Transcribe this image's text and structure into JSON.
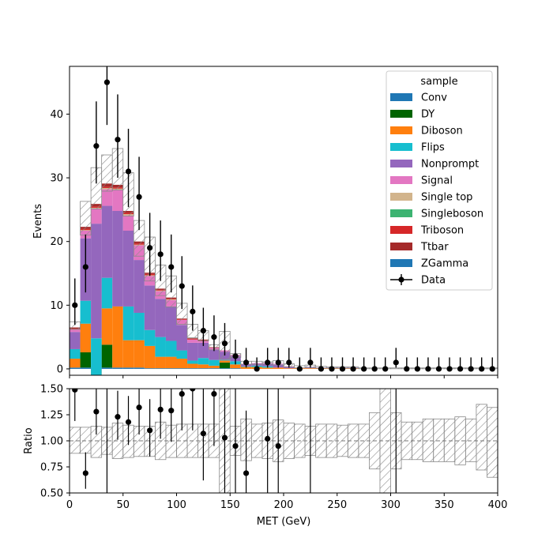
{
  "chart_data": [
    {
      "type": "stacked-histogram",
      "xlabel": "",
      "ylabel": "Events",
      "xlim": [
        0,
        400
      ],
      "ylim": [
        -1,
        47.5
      ],
      "yticks": [
        0,
        10,
        20,
        30,
        40
      ],
      "bins": [
        0,
        10,
        20,
        30,
        40,
        50,
        60,
        70,
        80,
        90,
        100,
        110,
        120,
        130,
        140,
        150,
        160,
        170,
        180,
        190,
        200,
        210,
        220,
        230,
        240,
        250,
        260,
        270,
        280,
        290,
        300,
        310,
        320,
        330,
        340,
        350,
        360,
        370,
        380,
        390,
        400
      ],
      "legend_title": "sample",
      "legend_position": "top-right",
      "series": [
        {
          "name": "Conv",
          "color": "#1f77b4",
          "values": [
            0.2,
            0.2,
            0.2,
            0.2,
            0.2,
            0.2,
            0.2,
            0.1,
            0.1,
            0.1,
            0.1,
            0.1,
            0.1,
            0.1,
            0.1,
            0.1,
            0,
            0,
            0,
            0,
            0,
            0,
            0,
            0,
            0,
            0,
            0,
            0,
            0,
            0,
            0,
            0,
            0,
            0,
            0,
            0,
            0,
            0,
            0,
            0
          ]
        },
        {
          "name": "DY",
          "color": "#006400",
          "values": [
            0,
            2.4,
            0,
            3.6,
            0,
            0,
            0,
            0,
            0,
            0,
            0,
            0,
            0,
            0,
            0.9,
            0,
            0,
            0,
            0,
            0,
            0,
            0,
            0,
            0,
            0,
            0,
            0,
            0,
            0,
            0,
            0,
            0,
            0,
            0,
            0,
            0,
            0,
            0,
            0,
            0
          ]
        },
        {
          "name": "Diboson",
          "color": "#ff7f0e",
          "values": [
            1.4,
            4.5,
            -1.2,
            5.7,
            9.6,
            4.3,
            4.3,
            3.5,
            1.8,
            1.8,
            1.5,
            0.7,
            0.6,
            0.4,
            0.3,
            0.6,
            0.3,
            0.3,
            0.2,
            0.2,
            0.1,
            0.1,
            0.1,
            0.1,
            0.1,
            0.1,
            0.1,
            0,
            0,
            0,
            0,
            0,
            0,
            0,
            0,
            0,
            0,
            0,
            0,
            0
          ]
        },
        {
          "name": "Flips",
          "color": "#17becf",
          "values": [
            1.5,
            3.6,
            5.8,
            4.8,
            0,
            5.3,
            4.3,
            2.5,
            3.1,
            2.5,
            1.3,
            0.5,
            1.0,
            0.9,
            0.1,
            0.5,
            0.1,
            0.2,
            0.2,
            0,
            0,
            0,
            0,
            0,
            0,
            0,
            0,
            0,
            0,
            0,
            0,
            0,
            0,
            0,
            0,
            0,
            0,
            0,
            0,
            0
          ]
        },
        {
          "name": "Nonprompt",
          "color": "#9467bd",
          "values": [
            2.7,
            9.8,
            18.0,
            11.3,
            15.0,
            11.9,
            8.3,
            7.0,
            6.0,
            5.4,
            4.0,
            2.8,
            2.4,
            1.6,
            1.3,
            0.8,
            0.3,
            0.3,
            0.4,
            0.5,
            0.2,
            0.1,
            0.2,
            0.1,
            0.1,
            0.1,
            0.1,
            0,
            0,
            0,
            0,
            0,
            0,
            0,
            0,
            0,
            0,
            0,
            0,
            0
          ]
        },
        {
          "name": "Signal",
          "color": "#e377c2",
          "values": [
            0.4,
            1.2,
            2.4,
            2.6,
            3.3,
            2.4,
            2.3,
            1.5,
            1.2,
            1.0,
            0.8,
            0.5,
            0.3,
            0.3,
            0.2,
            0.2,
            0.1,
            0.1,
            0.1,
            0.1,
            0.1,
            0,
            0,
            0,
            0,
            0,
            0,
            0,
            0,
            0,
            0,
            0,
            0,
            0,
            0,
            0,
            0,
            0,
            0,
            0
          ]
        },
        {
          "name": "Single top",
          "color": "#d2b48c",
          "values": [
            0,
            0.1,
            0.1,
            0.2,
            0.2,
            0.2,
            0.1,
            0.1,
            0.1,
            0.1,
            0,
            0,
            0,
            0,
            0,
            0,
            0,
            0,
            0,
            0,
            0,
            0,
            0,
            0,
            0,
            0,
            0,
            0,
            0,
            0,
            0,
            0,
            0,
            0,
            0,
            0,
            0,
            0,
            0,
            0
          ]
        },
        {
          "name": "Singleboson",
          "color": "#3cb371",
          "values": [
            0,
            0,
            0,
            0,
            0,
            0,
            0,
            0,
            0,
            0,
            0,
            0,
            0,
            0,
            0,
            0,
            0,
            0,
            0,
            0,
            0,
            0,
            0,
            0,
            0,
            0,
            0,
            0,
            0,
            0,
            0,
            0,
            0,
            0,
            0,
            0,
            0,
            0,
            0,
            0
          ]
        },
        {
          "name": "Triboson",
          "color": "#d62728",
          "values": [
            0.1,
            0.2,
            0.2,
            0.2,
            0.2,
            0.2,
            0.2,
            0.2,
            0.1,
            0.1,
            0.1,
            0.1,
            0.1,
            0,
            0,
            0,
            0,
            0,
            0,
            0,
            0,
            0,
            0,
            0,
            0,
            0,
            0,
            0,
            0,
            0,
            0,
            0,
            0,
            0,
            0,
            0,
            0,
            0,
            0,
            0
          ]
        },
        {
          "name": "Ttbar",
          "color": "#a52a2a",
          "values": [
            0.2,
            0.3,
            0.4,
            0.5,
            0.4,
            0.3,
            0.3,
            0.2,
            0.2,
            0.2,
            0.1,
            0.1,
            0.1,
            0.1,
            0,
            0,
            0,
            0,
            0,
            0,
            0,
            0,
            0,
            0,
            0,
            0,
            0,
            0,
            0,
            0,
            0,
            0,
            0,
            0,
            0,
            0,
            0,
            0,
            0,
            0
          ]
        },
        {
          "name": "ZGamma",
          "color": "#1f77b4",
          "values": [
            0,
            0,
            0,
            0,
            0,
            0,
            0,
            0,
            0,
            0,
            0,
            0,
            0,
            0,
            0,
            0,
            0,
            0,
            0,
            0,
            0,
            0,
            0,
            0,
            0,
            0,
            0,
            0,
            0,
            0,
            0,
            0,
            0,
            0,
            0,
            0,
            0,
            0,
            0,
            0
          ]
        }
      ],
      "mc_uncertainty_band": {
        "low": [
          6.2,
          21.0,
          25.1,
          27.9,
          28.1,
          24.0,
          17.7,
          13.8,
          11.5,
          9.7,
          7.0,
          4.9,
          4.4,
          3.0,
          1.5,
          1.8,
          0.7,
          0.7,
          0.7,
          0.6,
          0.3,
          0.15,
          0.2,
          0.1,
          0.1,
          0.1,
          0.1,
          0.02,
          0.02,
          0.02,
          0.02,
          0.02,
          0.02,
          0.02,
          0.02,
          0.02,
          0.02,
          0.02,
          0.02,
          0.02
        ],
        "high": [
          7.4,
          26.3,
          31.6,
          33.6,
          34.6,
          30.8,
          23.3,
          20.7,
          16.3,
          14.6,
          10.3,
          7.0,
          6.0,
          3.8,
          5.9,
          2.4,
          1.2,
          1.2,
          1.1,
          1.3,
          0.8,
          0.5,
          0.6,
          0.4,
          0.3,
          0.3,
          0.3,
          0.15,
          0.15,
          0.15,
          0.15,
          0.15,
          0.15,
          0.15,
          0.15,
          0.15,
          0.15,
          0.15,
          0.15,
          0.15
        ]
      },
      "data_series": {
        "name": "Data",
        "x": [
          5,
          15,
          25,
          35,
          45,
          55,
          65,
          75,
          85,
          95,
          105,
          115,
          125,
          135,
          145,
          155,
          165,
          175,
          185,
          195,
          205,
          215,
          225,
          235,
          245,
          255,
          265,
          275,
          285,
          295,
          305,
          315,
          325,
          335,
          345,
          355,
          365,
          375,
          385,
          395
        ],
        "y": [
          10,
          16,
          35,
          45,
          36,
          31,
          27,
          19,
          18,
          16,
          13,
          9,
          6,
          5,
          4,
          2,
          1,
          0,
          1,
          1,
          1,
          0,
          1,
          0,
          0,
          0,
          0,
          0,
          0,
          0,
          1,
          0,
          0,
          0,
          0,
          0,
          0,
          0,
          0,
          0
        ],
        "yerr_low": [
          3.1,
          4.0,
          5.9,
          6.7,
          6.0,
          5.6,
          5.2,
          4.4,
          4.2,
          4.0,
          3.6,
          3.0,
          2.4,
          2.2,
          1.9,
          1.3,
          0.8,
          0,
          0.8,
          0.8,
          0.8,
          0,
          0.8,
          0,
          0,
          0,
          0,
          0,
          0,
          0,
          0.8,
          0,
          0,
          0,
          0,
          0,
          0,
          0,
          0,
          0
        ],
        "yerr_high": [
          4.2,
          5.1,
          7.0,
          7.8,
          7.1,
          6.7,
          6.3,
          5.5,
          5.3,
          5.1,
          4.7,
          4.1,
          3.6,
          3.4,
          3.2,
          2.6,
          2.3,
          1.8,
          2.3,
          2.3,
          2.3,
          1.8,
          2.3,
          1.8,
          1.8,
          1.8,
          1.8,
          1.8,
          1.8,
          1.8,
          2.3,
          1.8,
          1.8,
          1.8,
          1.8,
          1.8,
          1.8,
          1.8,
          1.8,
          1.8
        ]
      }
    },
    {
      "type": "ratio",
      "xlabel": "MET (GeV)",
      "ylabel": "Ratio",
      "xlim": [
        0,
        400
      ],
      "ylim": [
        0.5,
        1.5
      ],
      "yticks": [
        0.5,
        0.75,
        1.0,
        1.25,
        1.5
      ],
      "ytick_labels": [
        "0.50",
        "0.75",
        "1.00",
        "1.25",
        "1.50"
      ],
      "xticks": [
        0,
        50,
        100,
        150,
        200,
        250,
        300,
        350,
        400
      ],
      "reference_line": 1.0,
      "band": {
        "low": [
          0.88,
          0.88,
          0.84,
          0.87,
          0.83,
          0.84,
          0.85,
          0.85,
          0.82,
          0.84,
          0.84,
          0.84,
          0.84,
          0.84,
          0.34,
          0.86,
          0.81,
          0.84,
          0.83,
          0.8,
          0.83,
          0.84,
          0.86,
          0.84,
          0.84,
          0.85,
          0.84,
          0.84,
          0.73,
          0.5,
          0.73,
          0.82,
          0.82,
          0.8,
          0.8,
          0.8,
          0.77,
          0.8,
          0.72,
          0.65
        ],
        "high": [
          1.13,
          1.13,
          1.14,
          1.13,
          1.17,
          1.15,
          1.14,
          1.14,
          1.18,
          1.15,
          1.16,
          1.16,
          1.16,
          1.16,
          1.5,
          1.14,
          1.21,
          1.16,
          1.17,
          1.2,
          1.17,
          1.16,
          1.14,
          1.16,
          1.16,
          1.15,
          1.16,
          1.16,
          1.27,
          1.5,
          1.27,
          1.18,
          1.18,
          1.21,
          1.21,
          1.21,
          1.23,
          1.21,
          1.35,
          1.32
        ]
      },
      "points": {
        "x": [
          5,
          15,
          25,
          45,
          55,
          65,
          75,
          85,
          95,
          105,
          115,
          125,
          135,
          145,
          155,
          165,
          185,
          195
        ],
        "y": [
          1.49,
          0.69,
          1.28,
          1.23,
          1.18,
          1.32,
          1.1,
          1.3,
          1.29,
          1.45,
          1.5,
          1.07,
          1.45,
          1.03,
          0.95,
          0.69,
          1.02,
          0.95
        ],
        "err_low": [
          0.3,
          0.15,
          0.22,
          0.22,
          0.22,
          0.26,
          0.25,
          0.28,
          0.3,
          0.35,
          0.4,
          0.45,
          0.5,
          0.53,
          0.5,
          0.6,
          0.6,
          0.6
        ],
        "err_high": [
          0.4,
          0.2,
          0.25,
          0.25,
          0.25,
          0.3,
          0.3,
          0.3,
          0.35,
          0.4,
          0.5,
          0.55,
          0.6,
          0.6,
          0.6,
          0.6,
          0.6,
          0.6
        ]
      },
      "vertical_error_bars_x": [
        35,
        225,
        305
      ]
    }
  ]
}
